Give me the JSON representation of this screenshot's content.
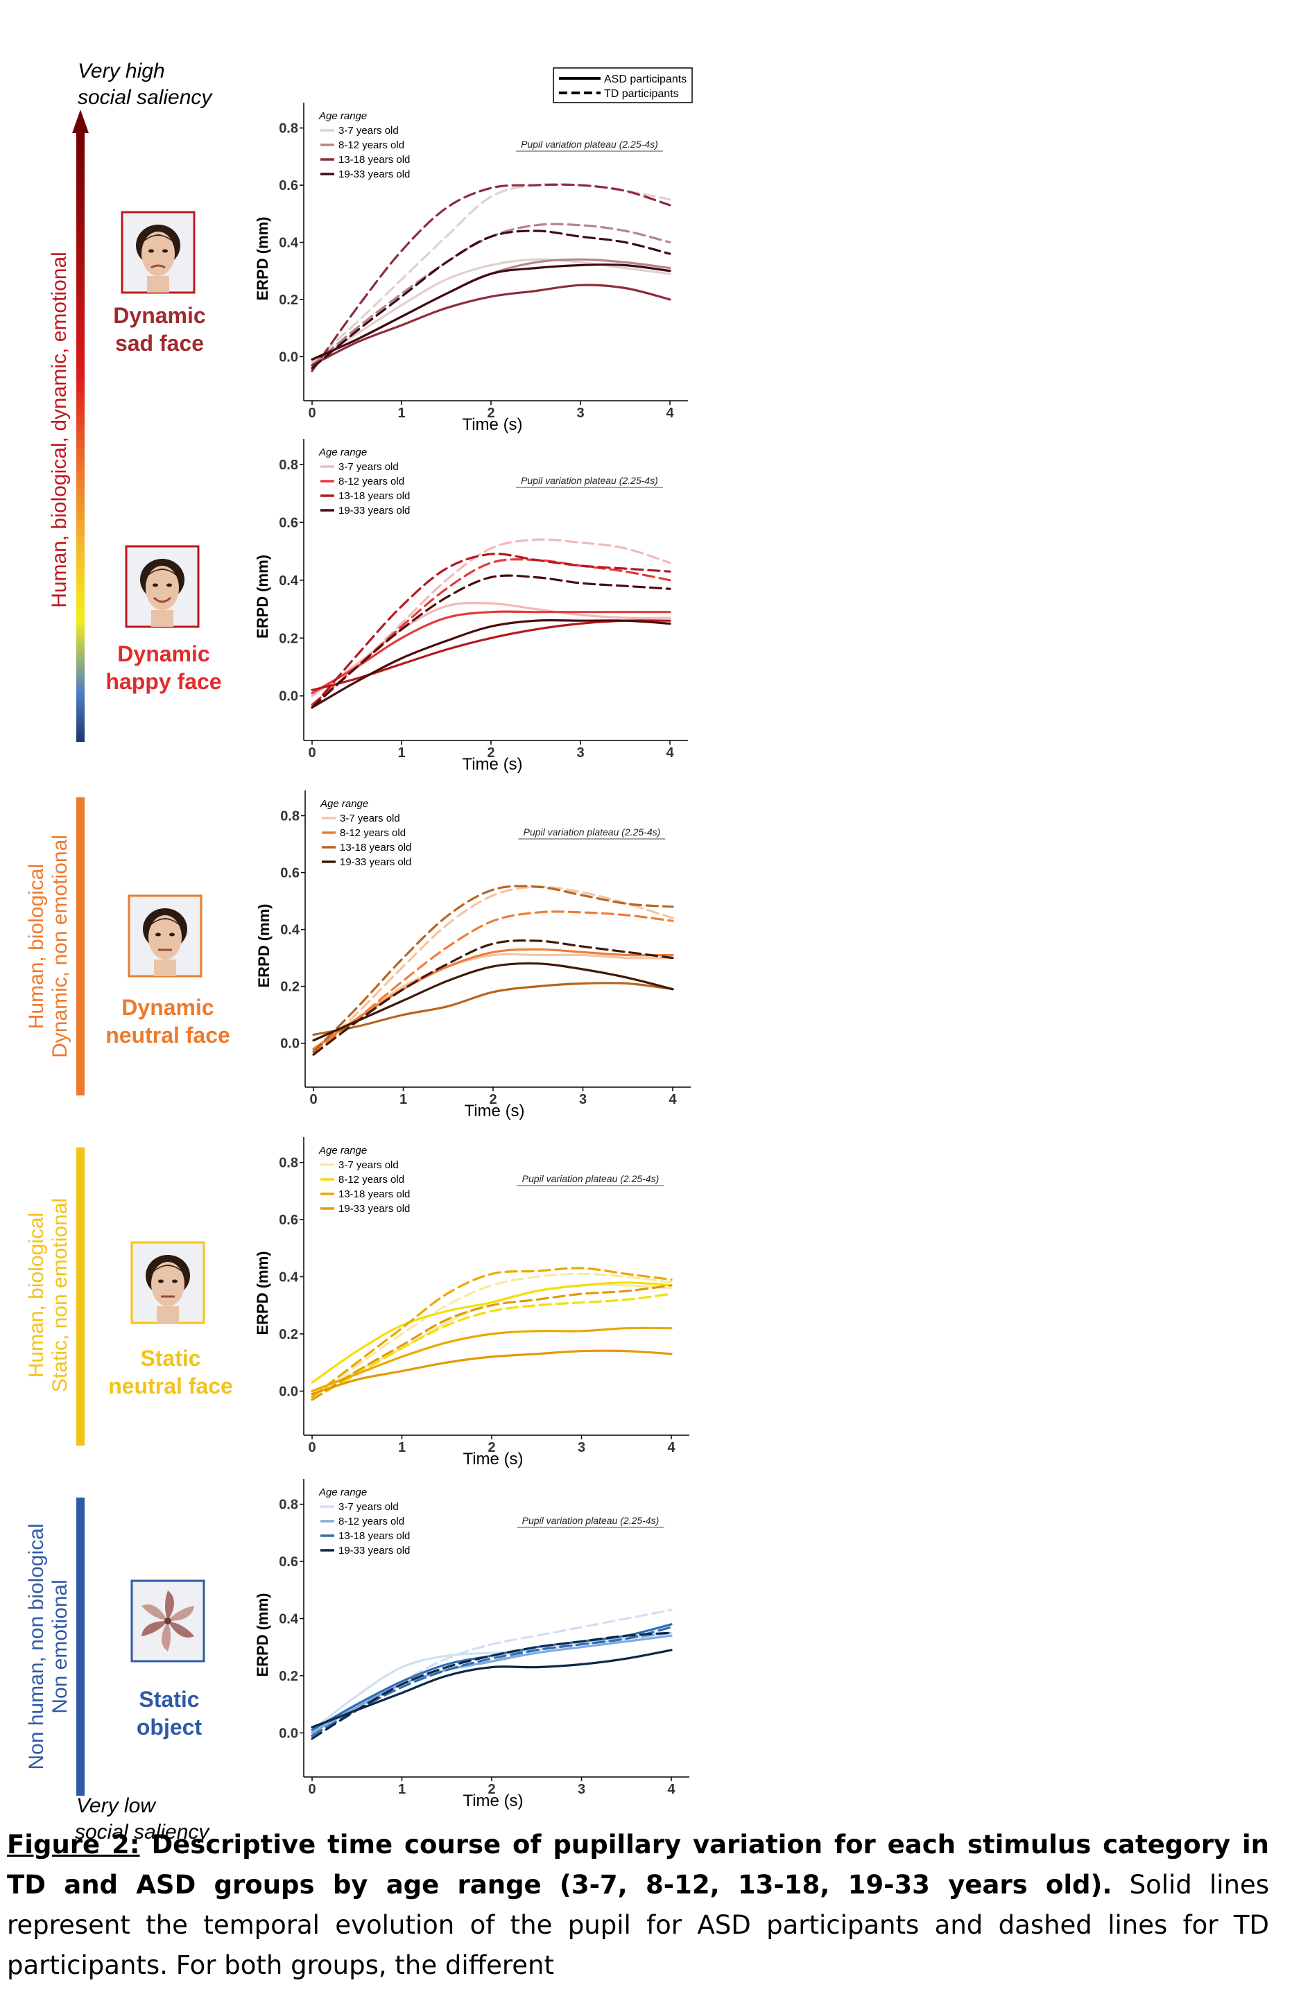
{
  "scale": {
    "top_label_line1": "Very high",
    "top_label_line2": "social saliency",
    "bottom_label_line1": "Very low",
    "bottom_label_line2": "social saliency"
  },
  "legend": {
    "asd": "ASD participants",
    "td": "TD participants"
  },
  "bands": [
    {
      "line1": "Human, biological, dynamic, emotional",
      "line2": "",
      "color": "#c0161d"
    },
    {
      "line1": "Human, biological",
      "line2": "Dynamic, non emotional",
      "color": "#ee7a2c"
    },
    {
      "line1": "Human, biological",
      "line2": "Static, non emotional",
      "color": "#f2c318"
    },
    {
      "line1": "Non human, non biological",
      "line2": "Non emotional",
      "color": "#2f5aa6"
    }
  ],
  "stimuli": [
    {
      "line1": "Dynamic",
      "line2": "sad face",
      "color": "#a02a2e",
      "icon": "sad-face-photo"
    },
    {
      "line1": "Dynamic",
      "line2": "happy face",
      "color": "#e32b2b",
      "icon": "happy-face-photo"
    },
    {
      "line1": "Dynamic",
      "line2": "neutral face",
      "color": "#ee7a2c",
      "icon": "neutral-face-photo"
    },
    {
      "line1": "Static",
      "line2": "neutral face",
      "color": "#f2c318",
      "icon": "neutral-face-photo"
    },
    {
      "line1": "Static",
      "line2": "object",
      "color": "#2f5aa6",
      "icon": "pinwheel-photo"
    }
  ],
  "chart_data": [
    {
      "type": "line",
      "panel": "Dynamic sad face",
      "xlabel": "Time (s)",
      "ylabel": "ERPD (mm)",
      "xlim": [
        0,
        4
      ],
      "ylim": [
        -0.13,
        0.85
      ],
      "xticks": [
        0,
        1,
        2,
        3,
        4
      ],
      "yticks": [
        0.0,
        0.2,
        0.4,
        0.6,
        0.8
      ],
      "legend_title": "Age range",
      "annotation": "Pupil variation plateau (2.25-4s)",
      "x": [
        0,
        0.5,
        1,
        1.5,
        2,
        2.5,
        3,
        3.5,
        4
      ],
      "series": [
        {
          "name": "3-7 years old",
          "color": "#e2cfd0",
          "asd": [
            -0.02,
            0.08,
            0.18,
            0.27,
            0.32,
            0.34,
            0.33,
            0.31,
            0.29
          ],
          "td": [
            -0.02,
            0.12,
            0.27,
            0.42,
            0.56,
            0.6,
            0.6,
            0.58,
            0.55
          ]
        },
        {
          "name": "8-12 years old",
          "color": "#b5848a",
          "asd": [
            -0.01,
            0.06,
            0.14,
            0.22,
            0.29,
            0.33,
            0.34,
            0.33,
            0.31
          ],
          "td": [
            -0.03,
            0.1,
            0.22,
            0.33,
            0.42,
            0.46,
            0.46,
            0.44,
            0.4
          ]
        },
        {
          "name": "13-18 years old",
          "color": "#8e2c3c",
          "asd": [
            -0.03,
            0.05,
            0.11,
            0.17,
            0.21,
            0.23,
            0.25,
            0.24,
            0.2
          ],
          "td": [
            -0.05,
            0.17,
            0.37,
            0.52,
            0.59,
            0.6,
            0.6,
            0.58,
            0.53
          ]
        },
        {
          "name": "19-33 years old",
          "color": "#3d0a14",
          "asd": [
            -0.01,
            0.06,
            0.14,
            0.22,
            0.29,
            0.31,
            0.32,
            0.32,
            0.3
          ],
          "td": [
            -0.04,
            0.09,
            0.21,
            0.33,
            0.42,
            0.44,
            0.42,
            0.4,
            0.36
          ]
        }
      ]
    },
    {
      "type": "line",
      "panel": "Dynamic happy face",
      "xlabel": "Time (s)",
      "ylabel": "ERPD (mm)",
      "xlim": [
        0,
        4
      ],
      "ylim": [
        -0.13,
        0.85
      ],
      "xticks": [
        0,
        1,
        2,
        3,
        4
      ],
      "yticks": [
        0.0,
        0.2,
        0.4,
        0.6,
        0.8
      ],
      "legend_title": "Age range",
      "annotation": "Pupil variation plateau (2.25-4s)",
      "x": [
        0,
        0.5,
        1,
        1.5,
        2,
        2.5,
        3,
        3.5,
        4
      ],
      "series": [
        {
          "name": "3-7 years old",
          "color": "#f4b8b8",
          "asd": [
            0.0,
            0.11,
            0.23,
            0.31,
            0.32,
            0.3,
            0.28,
            0.27,
            0.27
          ],
          "td": [
            -0.04,
            0.1,
            0.25,
            0.4,
            0.51,
            0.54,
            0.53,
            0.51,
            0.46
          ]
        },
        {
          "name": "8-12 years old",
          "color": "#e43b3b",
          "asd": [
            0.01,
            0.1,
            0.2,
            0.27,
            0.29,
            0.29,
            0.29,
            0.29,
            0.29
          ],
          "td": [
            -0.03,
            0.1,
            0.24,
            0.37,
            0.46,
            0.47,
            0.45,
            0.43,
            0.4
          ]
        },
        {
          "name": "13-18 years old",
          "color": "#b4191d",
          "asd": [
            0.02,
            0.06,
            0.11,
            0.16,
            0.2,
            0.23,
            0.25,
            0.26,
            0.26
          ],
          "td": [
            -0.04,
            0.14,
            0.31,
            0.44,
            0.49,
            0.47,
            0.45,
            0.44,
            0.43
          ]
        },
        {
          "name": "19-33 years old",
          "color": "#4a0c0c",
          "asd": [
            -0.04,
            0.05,
            0.13,
            0.19,
            0.24,
            0.26,
            0.26,
            0.26,
            0.25
          ],
          "td": [
            -0.04,
            0.1,
            0.23,
            0.34,
            0.41,
            0.41,
            0.39,
            0.38,
            0.37
          ]
        }
      ]
    },
    {
      "type": "line",
      "panel": "Dynamic neutral face",
      "xlabel": "Time (s)",
      "ylabel": "ERPD (mm)",
      "xlim": [
        0,
        4
      ],
      "ylim": [
        -0.13,
        0.85
      ],
      "xticks": [
        0,
        1,
        2,
        3,
        4
      ],
      "yticks": [
        0.0,
        0.2,
        0.4,
        0.6,
        0.8
      ],
      "legend_title": "Age range",
      "annotation": "Pupil variation plateau (2.25-4s)",
      "x": [
        0,
        0.5,
        1,
        1.5,
        2,
        2.5,
        3,
        3.5,
        4
      ],
      "series": [
        {
          "name": "3-7 years old",
          "color": "#f6c3a2",
          "asd": [
            -0.02,
            0.09,
            0.2,
            0.27,
            0.31,
            0.31,
            0.31,
            0.3,
            0.3
          ],
          "td": [
            -0.04,
            0.11,
            0.27,
            0.42,
            0.52,
            0.55,
            0.53,
            0.49,
            0.44
          ]
        },
        {
          "name": "8-12 years old",
          "color": "#f07d37",
          "asd": [
            -0.02,
            0.09,
            0.19,
            0.27,
            0.32,
            0.33,
            0.32,
            0.31,
            0.31
          ],
          "td": [
            -0.03,
            0.09,
            0.22,
            0.34,
            0.43,
            0.46,
            0.46,
            0.45,
            0.43
          ]
        },
        {
          "name": "13-18 years old",
          "color": "#b8651e",
          "asd": [
            0.03,
            0.06,
            0.1,
            0.13,
            0.18,
            0.2,
            0.21,
            0.21,
            0.19
          ],
          "td": [
            -0.03,
            0.13,
            0.3,
            0.45,
            0.54,
            0.55,
            0.52,
            0.49,
            0.48
          ]
        },
        {
          "name": "19-33 years old",
          "color": "#3f1908",
          "asd": [
            0.01,
            0.08,
            0.15,
            0.22,
            0.27,
            0.28,
            0.26,
            0.23,
            0.19
          ],
          "td": [
            -0.04,
            0.08,
            0.19,
            0.28,
            0.35,
            0.36,
            0.34,
            0.32,
            0.3
          ]
        }
      ]
    },
    {
      "type": "line",
      "panel": "Static neutral face",
      "xlabel": "Time (s)",
      "ylabel": "ERPD (mm)",
      "xlim": [
        0,
        4
      ],
      "ylim": [
        -0.13,
        0.85
      ],
      "xticks": [
        0,
        1,
        2,
        3,
        4
      ],
      "yticks": [
        0.0,
        0.2,
        0.4,
        0.6,
        0.8
      ],
      "legend_title": "Age range",
      "annotation": "Pupil variation plateau (2.25-4s)",
      "x": [
        0,
        0.5,
        1,
        1.5,
        2,
        2.5,
        3,
        3.5,
        4
      ],
      "series": [
        {
          "name": "3-7 years old",
          "color": "#f7eaa3",
          "asd": [
            -0.01,
            0.07,
            0.15,
            0.24,
            0.31,
            0.35,
            0.37,
            0.37,
            0.36
          ],
          "td": [
            -0.02,
            0.09,
            0.2,
            0.3,
            0.37,
            0.4,
            0.41,
            0.4,
            0.38
          ]
        },
        {
          "name": "8-12 years old",
          "color": "#f3df0a",
          "asd": [
            0.03,
            0.14,
            0.23,
            0.28,
            0.31,
            0.35,
            0.37,
            0.38,
            0.37
          ],
          "td": [
            -0.03,
            0.06,
            0.15,
            0.23,
            0.28,
            0.3,
            0.31,
            0.32,
            0.34
          ]
        },
        {
          "name": "13-18 years old",
          "color": "#eca800",
          "asd": [
            0.0,
            0.06,
            0.12,
            0.17,
            0.2,
            0.21,
            0.21,
            0.22,
            0.22
          ],
          "td": [
            -0.02,
            0.1,
            0.22,
            0.34,
            0.41,
            0.42,
            0.43,
            0.41,
            0.39
          ]
        },
        {
          "name": "19-33 years old",
          "color": "#e39a08",
          "asd": [
            -0.01,
            0.04,
            0.07,
            0.1,
            0.12,
            0.13,
            0.14,
            0.14,
            0.13
          ],
          "td": [
            -0.03,
            0.07,
            0.16,
            0.25,
            0.3,
            0.32,
            0.34,
            0.35,
            0.37
          ]
        }
      ]
    },
    {
      "type": "line",
      "panel": "Static object",
      "xlabel": "Time (s)",
      "ylabel": "ERPD (mm)",
      "xlim": [
        0,
        4
      ],
      "ylim": [
        -0.13,
        0.85
      ],
      "xticks": [
        0,
        1,
        2,
        3,
        4
      ],
      "yticks": [
        0.0,
        0.2,
        0.4,
        0.6,
        0.8
      ],
      "legend_title": "Age range",
      "annotation": "Pupil variation plateau (2.25-4s)",
      "x": [
        0,
        0.5,
        1,
        1.5,
        2,
        2.5,
        3,
        3.5,
        4
      ],
      "series": [
        {
          "name": "3-7 years old",
          "color": "#d0e0f2",
          "asd": [
            0.01,
            0.13,
            0.23,
            0.27,
            0.28,
            0.29,
            0.31,
            0.33,
            0.35
          ],
          "td": [
            -0.01,
            0.09,
            0.18,
            0.26,
            0.31,
            0.34,
            0.37,
            0.4,
            0.43
          ]
        },
        {
          "name": "8-12 years old",
          "color": "#7fabdc",
          "asd": [
            0.0,
            0.09,
            0.17,
            0.22,
            0.25,
            0.28,
            0.3,
            0.32,
            0.34
          ],
          "td": [
            -0.01,
            0.09,
            0.17,
            0.22,
            0.25,
            0.29,
            0.31,
            0.33,
            0.35
          ]
        },
        {
          "name": "13-18 years old",
          "color": "#2f6db5",
          "asd": [
            0.01,
            0.1,
            0.18,
            0.24,
            0.27,
            0.3,
            0.32,
            0.34,
            0.38
          ],
          "td": [
            -0.01,
            0.08,
            0.16,
            0.22,
            0.26,
            0.29,
            0.31,
            0.33,
            0.37
          ]
        },
        {
          "name": "19-33 years old",
          "color": "#0e2748",
          "asd": [
            0.02,
            0.08,
            0.14,
            0.2,
            0.23,
            0.23,
            0.24,
            0.26,
            0.29
          ],
          "td": [
            -0.02,
            0.08,
            0.17,
            0.23,
            0.27,
            0.3,
            0.32,
            0.34,
            0.35
          ]
        }
      ]
    }
  ],
  "caption": {
    "label": "Figure 2:",
    "title": " Descriptive time course of pupillary variation for each stimulus category in TD and ASD groups by age range (3-7, 8-12, 13-18, 19-33 years old).",
    "body": " Solid lines represent the temporal evolution of the pupil for ASD participants and dashed lines for TD participants. For both groups, the different"
  }
}
